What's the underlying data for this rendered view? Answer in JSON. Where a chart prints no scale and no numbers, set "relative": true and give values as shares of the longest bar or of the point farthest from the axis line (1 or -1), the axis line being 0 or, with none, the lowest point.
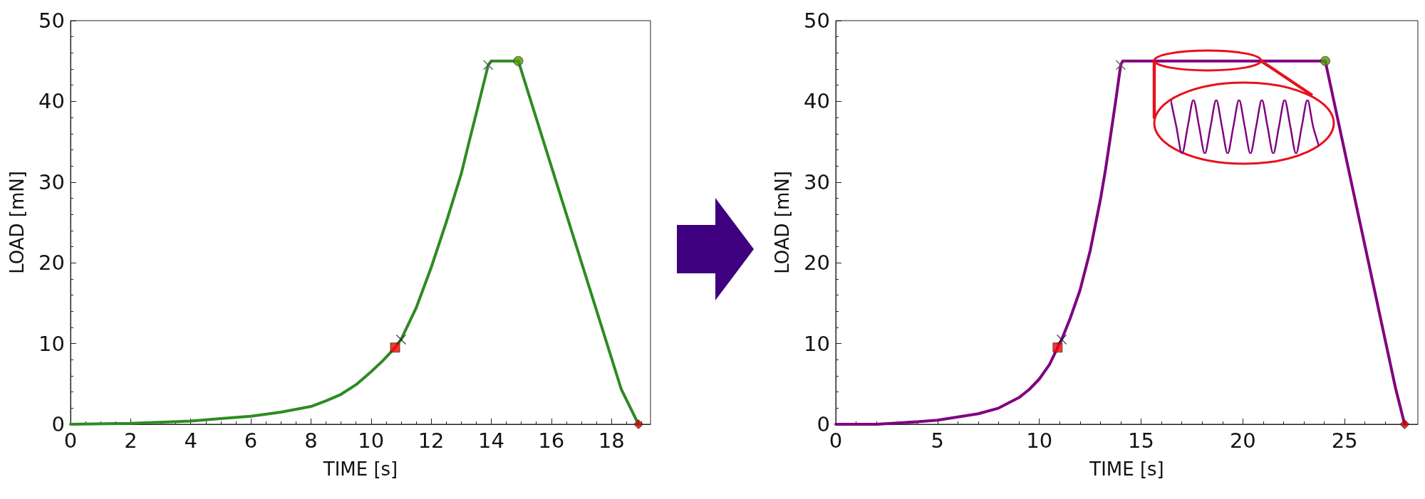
{
  "chart_data": [
    {
      "type": "line",
      "xlabel": "TIME [s]",
      "ylabel": "LOAD [mN]",
      "xlim": [
        0,
        19.3
      ],
      "xticks": [
        0,
        2,
        4,
        6,
        8,
        10,
        12,
        14,
        16,
        18
      ],
      "ylim": [
        0,
        50
      ],
      "yticks": [
        0,
        10,
        20,
        30,
        40,
        50
      ],
      "grid": false,
      "marker": "none",
      "line_style": "solid",
      "series": [
        {
          "color": "#2e8b22",
          "x": [
            0,
            2,
            4,
            5,
            6,
            7,
            8,
            8.5,
            9,
            9.5,
            10,
            10.4,
            10.8,
            11,
            11.5,
            12,
            12.5,
            13,
            13.25,
            13.5,
            13.7,
            13.9,
            14,
            14.9,
            18.33,
            18.9
          ],
          "values": [
            0,
            0.1,
            0.4,
            0.7,
            1,
            1.5,
            2.2,
            2.9,
            3.7,
            4.9,
            6.5,
            7.9,
            9.5,
            10.5,
            14.4,
            19.4,
            25,
            31,
            34.8,
            38.5,
            41.5,
            44.5,
            45,
            45,
            4.3,
            0
          ]
        },
        {
          "type": "scatter",
          "marker": "square",
          "color": "#ff0000",
          "x": [
            10.8
          ],
          "values": [
            9.5
          ]
        },
        {
          "type": "scatter",
          "marker": "cross",
          "color": "#222222",
          "x": [
            11
          ],
          "values": [
            10.5
          ]
        },
        {
          "type": "scatter",
          "marker": "cross",
          "color": "#555555",
          "x": [
            13.9
          ],
          "values": [
            44.5
          ]
        },
        {
          "type": "scatter",
          "marker": "circle",
          "color": "#4c9a00",
          "x": [
            14.9
          ],
          "values": [
            45
          ]
        },
        {
          "type": "scatter",
          "marker": "diamond",
          "color": "#d00000",
          "x": [
            18.9
          ],
          "values": [
            0
          ]
        }
      ]
    },
    {
      "type": "line",
      "xlabel": "TIME [s]",
      "ylabel": "LOAD [mN]",
      "xlim": [
        0,
        28.6
      ],
      "xticks": [
        0,
        5,
        10,
        15,
        20,
        25
      ],
      "ylim": [
        0,
        50
      ],
      "yticks": [
        0,
        10,
        20,
        30,
        40,
        50
      ],
      "grid": false,
      "marker": "none",
      "line_style": "solid",
      "series": [
        {
          "color": "#800080",
          "x": [
            0,
            2,
            4,
            5,
            6,
            7,
            8,
            9,
            9.5,
            10,
            10.5,
            10.9,
            11.1,
            11.5,
            12,
            12.5,
            13,
            13.25,
            13.5,
            13.75,
            14,
            14.1,
            24.05,
            27.5,
            27.95
          ],
          "values": [
            0,
            0,
            0.3,
            0.5,
            0.9,
            1.3,
            2,
            3.3,
            4.3,
            5.6,
            7.4,
            9.5,
            10.5,
            13,
            16.6,
            21.5,
            27.8,
            31.5,
            35.7,
            40,
            44.5,
            45,
            45,
            4.5,
            0
          ]
        },
        {
          "type": "scatter",
          "marker": "square",
          "color": "#ff0000",
          "x": [
            10.9
          ],
          "values": [
            9.5
          ]
        },
        {
          "type": "scatter",
          "marker": "cross",
          "color": "#222222",
          "x": [
            11.1
          ],
          "values": [
            10.5
          ]
        },
        {
          "type": "scatter",
          "marker": "cross",
          "color": "#555555",
          "x": [
            14
          ],
          "values": [
            44.5
          ]
        },
        {
          "type": "scatter",
          "marker": "circle",
          "color": "#4c9a00",
          "x": [
            24.05
          ],
          "values": [
            45
          ]
        },
        {
          "type": "scatter",
          "marker": "diamond",
          "color": "#d00000",
          "x": [
            27.95
          ],
          "values": [
            0
          ]
        }
      ]
    },
    {
      "type": "line",
      "relative": true,
      "marker": "none",
      "categories": [
        null,
        null,
        null,
        null,
        null,
        null,
        null,
        null,
        null,
        null,
        null,
        null,
        null,
        null,
        null,
        null,
        null,
        null,
        null,
        null,
        null,
        null,
        null,
        null,
        null,
        null,
        null
      ],
      "series": [
        {
          "color": "#800080",
          "values": [
            1,
            0.5,
            0,
            0.5,
            1,
            0.5,
            0,
            0.5,
            1,
            0.5,
            0,
            0.5,
            1,
            0.5,
            0,
            0.5,
            1,
            0.5,
            0,
            0.5,
            1,
            0.5,
            0,
            0.5,
            1,
            0.5,
            0.15
          ]
        }
      ]
    }
  ]
}
